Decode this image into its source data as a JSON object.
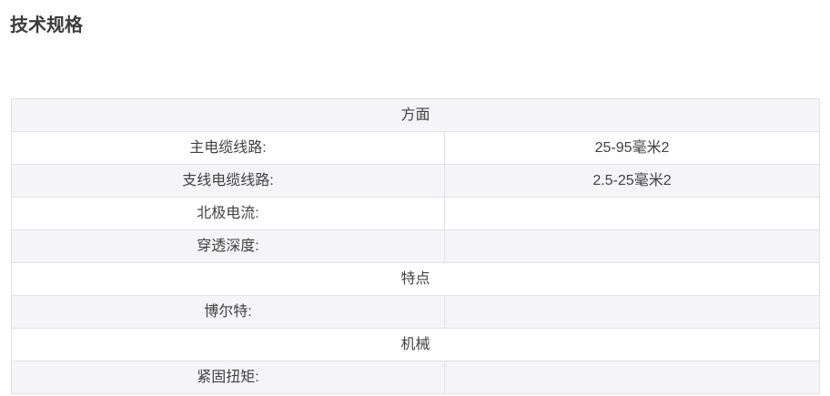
{
  "page": {
    "title": "技术规格"
  },
  "spec_table": {
    "rows": [
      {
        "type": "section",
        "label": "方面"
      },
      {
        "type": "spec",
        "label": "主电缆线路:",
        "value": "25-95毫米2"
      },
      {
        "type": "spec",
        "label": "支线电缆线路:",
        "value": "2.5-25毫米2"
      },
      {
        "type": "spec",
        "label": "北极电流:",
        "value": ""
      },
      {
        "type": "spec",
        "label": "穿透深度:",
        "value": ""
      },
      {
        "type": "section",
        "label": "特点"
      },
      {
        "type": "spec",
        "label": "博尔特:",
        "value": ""
      },
      {
        "type": "section",
        "label": "机械"
      },
      {
        "type": "spec",
        "label": "紧固扭矩:",
        "value": ""
      }
    ],
    "colors": {
      "stripe_background": "#f5f5f7",
      "border": "#e1e1e8",
      "text": "#414141",
      "title_text": "#3b3b3b"
    }
  }
}
